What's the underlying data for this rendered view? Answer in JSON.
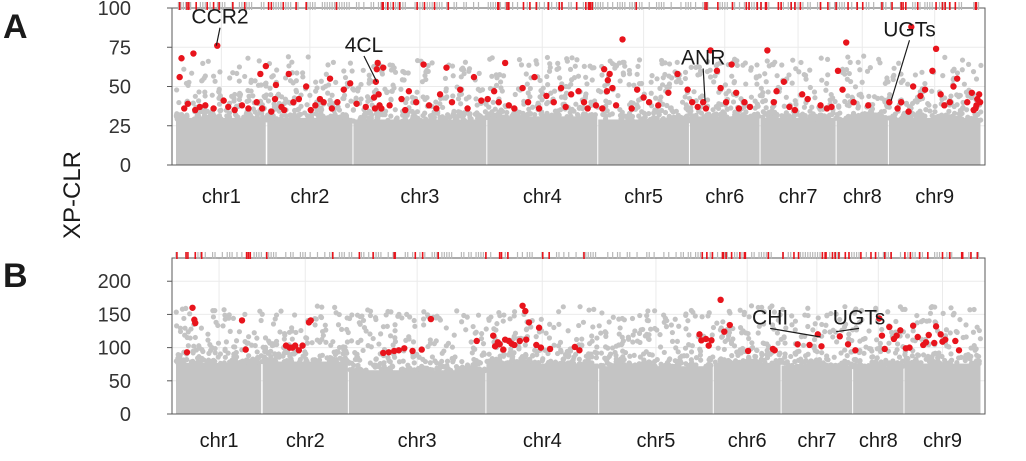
{
  "figure": {
    "ylabel": "XP-CLR",
    "colors": {
      "background_points": "#c4c4c4",
      "highlight_points": "#e8141c",
      "gridline": "#ebebeb",
      "tick_grey": "#b8b8b8",
      "tick_red": "#e8141c",
      "text": "#1a1a1a"
    }
  },
  "chart_data": [
    {
      "type": "scatter",
      "panel_label": "A",
      "ylim": [
        0,
        100
      ],
      "yticks": [
        0,
        25,
        50,
        75,
        100
      ],
      "chromosomes": [
        "chr1",
        "chr2",
        "chr3",
        "chr4",
        "chr5",
        "chr6",
        "chr7",
        "chr8",
        "chr9"
      ],
      "chrom_bounds": [
        0,
        99,
        193,
        339,
        460,
        560,
        637,
        720,
        777,
        878
      ],
      "baseline_levels": [
        30,
        30,
        29,
        31,
        29,
        31,
        30,
        30,
        30
      ],
      "annotations": [
        {
          "label": "CCR2",
          "target": [
            44,
            76
          ],
          "anchor": [
            48,
            90
          ]
        },
        {
          "label": "4CL",
          "target": [
            219,
            53
          ],
          "anchor": [
            205,
            72
          ]
        },
        {
          "label": "ANR",
          "target": [
            577,
            41
          ],
          "anchor": [
            575,
            64
          ]
        },
        {
          "label": "UGTs",
          "target": [
            780,
            41
          ],
          "anchor": [
            800,
            82
          ]
        }
      ],
      "highlight": [
        [
          4,
          56
        ],
        [
          6,
          68
        ],
        [
          9,
          36
        ],
        [
          13,
          39
        ],
        [
          19,
          71
        ],
        [
          21,
          35
        ],
        [
          26,
          37
        ],
        [
          32,
          38
        ],
        [
          41,
          36
        ],
        [
          45,
          76
        ],
        [
          52,
          41
        ],
        [
          57,
          37
        ],
        [
          64,
          35
        ],
        [
          72,
          38
        ],
        [
          79,
          36
        ],
        [
          88,
          40
        ],
        [
          92,
          58
        ],
        [
          94,
          36
        ],
        [
          98,
          63
        ],
        [
          104,
          34
        ],
        [
          108,
          42
        ],
        [
          109,
          51
        ],
        [
          115,
          37
        ],
        [
          118,
          35
        ],
        [
          123,
          58
        ],
        [
          128,
          40
        ],
        [
          134,
          42
        ],
        [
          142,
          50
        ],
        [
          147,
          35
        ],
        [
          152,
          38
        ],
        [
          157,
          42
        ],
        [
          161,
          40
        ],
        [
          168,
          55
        ],
        [
          170,
          36
        ],
        [
          176,
          40
        ],
        [
          183,
          48
        ],
        [
          190,
          52
        ],
        [
          197,
          39
        ],
        [
          207,
          37
        ],
        [
          216,
          43
        ],
        [
          217,
          36
        ],
        [
          218,
          53
        ],
        [
          219,
          61
        ],
        [
          220,
          65
        ],
        [
          221,
          45
        ],
        [
          222,
          38
        ],
        [
          224,
          36
        ],
        [
          226,
          62
        ],
        [
          233,
          38
        ],
        [
          246,
          42
        ],
        [
          250,
          35
        ],
        [
          254,
          47
        ],
        [
          262,
          40
        ],
        [
          270,
          64
        ],
        [
          276,
          38
        ],
        [
          284,
          36
        ],
        [
          288,
          45
        ],
        [
          295,
          62
        ],
        [
          301,
          40
        ],
        [
          310,
          48
        ],
        [
          318,
          36
        ],
        [
          325,
          56
        ],
        [
          333,
          41
        ],
        [
          340,
          42
        ],
        [
          347,
          47
        ],
        [
          352,
          40
        ],
        [
          359,
          65
        ],
        [
          363,
          38
        ],
        [
          369,
          36
        ],
        [
          378,
          49
        ],
        [
          384,
          40
        ],
        [
          391,
          56
        ],
        [
          396,
          36
        ],
        [
          404,
          44
        ],
        [
          412,
          40
        ],
        [
          420,
          49
        ],
        [
          425,
          37
        ],
        [
          431,
          45
        ],
        [
          439,
          47
        ],
        [
          445,
          40
        ],
        [
          449,
          36
        ],
        [
          458,
          38
        ],
        [
          465,
          36
        ],
        [
          467,
          61
        ],
        [
          470,
          47
        ],
        [
          471,
          54
        ],
        [
          473,
          58
        ],
        [
          476,
          49
        ],
        [
          480,
          38
        ],
        [
          487,
          80
        ],
        [
          497,
          36
        ],
        [
          503,
          48
        ],
        [
          510,
          43
        ],
        [
          516,
          40
        ],
        [
          526,
          38
        ],
        [
          537,
          46
        ],
        [
          547,
          58
        ],
        [
          558,
          48
        ],
        [
          563,
          40
        ],
        [
          569,
          37
        ],
        [
          575,
          40
        ],
        [
          578,
          36
        ],
        [
          583,
          73
        ],
        [
          590,
          60
        ],
        [
          594,
          49
        ],
        [
          600,
          40
        ],
        [
          606,
          64
        ],
        [
          611,
          46
        ],
        [
          614,
          36
        ],
        [
          620,
          40
        ],
        [
          626,
          37
        ],
        [
          645,
          73
        ],
        [
          652,
          40
        ],
        [
          655,
          47
        ],
        [
          663,
          53
        ],
        [
          669,
          37
        ],
        [
          675,
          35
        ],
        [
          683,
          45
        ],
        [
          689,
          42
        ],
        [
          703,
          38
        ],
        [
          710,
          36
        ],
        [
          715,
          37
        ],
        [
          722,
          60
        ],
        [
          727,
          48
        ],
        [
          731,
          78
        ],
        [
          739,
          40
        ],
        [
          755,
          38
        ],
        [
          778,
          40
        ],
        [
          787,
          36
        ],
        [
          791,
          40
        ],
        [
          799,
          34
        ],
        [
          802,
          88
        ],
        [
          804,
          50
        ],
        [
          812,
          44
        ],
        [
          817,
          48
        ],
        [
          825,
          60
        ],
        [
          829,
          74
        ],
        [
          834,
          45
        ],
        [
          838,
          38
        ],
        [
          844,
          40
        ],
        [
          848,
          50
        ],
        [
          852,
          55
        ],
        [
          863,
          40
        ],
        [
          868,
          46
        ],
        [
          870,
          35
        ],
        [
          872,
          36
        ],
        [
          873,
          38
        ],
        [
          874,
          42
        ],
        [
          876,
          45
        ],
        [
          877,
          40
        ]
      ],
      "rug_red": [
        4,
        12,
        14,
        22,
        34,
        41,
        47,
        62,
        75,
        101,
        104,
        117,
        131,
        142,
        175,
        225,
        226,
        231,
        237,
        244,
        263,
        271,
        282,
        297,
        351,
        352,
        361,
        363,
        379,
        386,
        393,
        406,
        418,
        421,
        437,
        447,
        450,
        451,
        452,
        454,
        502,
        577,
        579,
        591,
        607,
        622,
        625,
        634,
        638,
        643,
        644,
        657,
        660,
        671,
        675,
        681,
        703,
        711,
        720,
        733,
        743,
        749,
        770,
        781,
        791,
        793,
        796,
        809,
        829,
        836,
        839,
        844,
        850,
        872,
        873
      ]
    },
    {
      "type": "scatter",
      "panel_label": "B",
      "ylim": [
        0,
        235
      ],
      "yticks": [
        0,
        50,
        100,
        150,
        200
      ],
      "chromosomes": [
        "chr1",
        "chr2",
        "chr3",
        "chr4",
        "chr5",
        "chr6",
        "chr7",
        "chr8",
        "chr9"
      ],
      "chrom_bounds": [
        0,
        94,
        188,
        338,
        461,
        586,
        660,
        738,
        794,
        878
      ],
      "baseline_levels": [
        77,
        79,
        66,
        76,
        72,
        77,
        73,
        72,
        76
      ],
      "annotations": [
        {
          "label": "CHI",
          "target": [
            703,
            116
          ],
          "anchor": [
            648,
            135
          ]
        },
        {
          "label": "UGTs",
          "target": [
            720,
            124
          ],
          "anchor": [
            745,
            135
          ]
        }
      ],
      "highlight": [
        [
          12,
          93
        ],
        [
          18,
          160
        ],
        [
          20,
          142
        ],
        [
          21,
          137
        ],
        [
          72,
          141
        ],
        [
          76,
          97
        ],
        [
          120,
          103
        ],
        [
          124,
          100
        ],
        [
          127,
          100
        ],
        [
          130,
          103
        ],
        [
          134,
          96
        ],
        [
          138,
          103
        ],
        [
          145,
          138
        ],
        [
          147,
          141
        ],
        [
          226,
          92
        ],
        [
          232,
          93
        ],
        [
          238,
          95
        ],
        [
          243,
          96
        ],
        [
          249,
          99
        ],
        [
          258,
          95
        ],
        [
          268,
          97
        ],
        [
          278,
          143
        ],
        [
          328,
          110
        ],
        [
          346,
          118
        ],
        [
          348,
          102
        ],
        [
          351,
          108
        ],
        [
          353,
          105
        ],
        [
          357,
          97
        ],
        [
          359,
          112
        ],
        [
          363,
          110
        ],
        [
          366,
          106
        ],
        [
          369,
          104
        ],
        [
          375,
          110
        ],
        [
          378,
          163
        ],
        [
          381,
          155
        ],
        [
          382,
          112
        ],
        [
          385,
          138
        ],
        [
          393,
          104
        ],
        [
          396,
          130
        ],
        [
          398,
          100
        ],
        [
          408,
          98
        ],
        [
          435,
          101
        ],
        [
          440,
          96
        ],
        [
          571,
          120
        ],
        [
          573,
          111
        ],
        [
          578,
          113
        ],
        [
          581,
          103
        ],
        [
          584,
          111
        ],
        [
          594,
          172
        ],
        [
          598,
          124
        ],
        [
          604,
          134
        ],
        [
          624,
          95
        ],
        [
          651,
          98
        ],
        [
          653,
          96
        ],
        [
          678,
          105
        ],
        [
          691,
          104
        ],
        [
          700,
          120
        ],
        [
          704,
          102
        ],
        [
          724,
          117
        ],
        [
          733,
          105
        ],
        [
          741,
          96
        ],
        [
          767,
          144
        ],
        [
          770,
          118
        ],
        [
          773,
          98
        ],
        [
          778,
          131
        ],
        [
          783,
          113
        ],
        [
          786,
          118
        ],
        [
          790,
          126
        ],
        [
          796,
          99
        ],
        [
          800,
          100
        ],
        [
          804,
          133
        ],
        [
          809,
          116
        ],
        [
          815,
          104
        ],
        [
          818,
          108
        ],
        [
          821,
          119
        ],
        [
          827,
          107
        ],
        [
          829,
          132
        ],
        [
          834,
          120
        ],
        [
          836,
          109
        ],
        [
          839,
          112
        ],
        [
          850,
          110
        ],
        [
          854,
          96
        ]
      ],
      "rug_red": [
        1,
        11,
        13,
        21,
        28,
        77,
        79,
        81,
        99,
        171,
        200,
        215,
        238,
        239,
        261,
        269,
        286,
        338,
        353,
        355,
        362,
        400,
        407,
        445,
        574,
        579,
        585,
        596,
        597,
        600,
        606,
        615,
        620,
        621,
        646,
        662,
        674,
        679,
        705,
        708,
        709,
        716,
        719,
        723,
        730,
        734,
        747,
        758,
        763,
        773,
        780,
        795,
        801,
        811,
        820,
        836,
        844,
        857,
        858,
        867,
        874
      ]
    }
  ]
}
